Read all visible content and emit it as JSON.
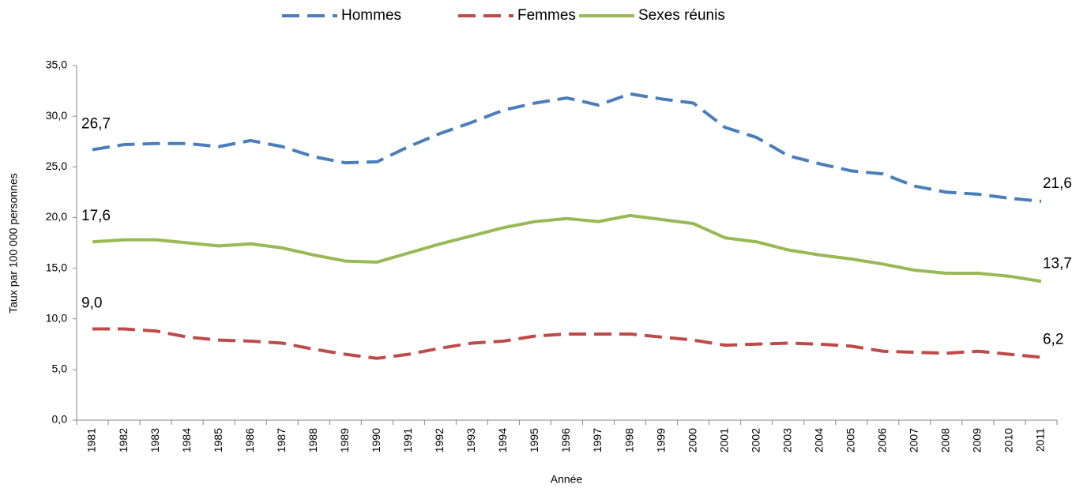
{
  "chart_data": {
    "type": "line",
    "y_label": "Taux par 100 000 personnes",
    "x_label": "Année",
    "categories": [
      "1981",
      "1982",
      "1983",
      "1984",
      "1985",
      "1986",
      "1987",
      "1988",
      "1989",
      "1990",
      "1991",
      "1992",
      "1993",
      "1994",
      "1995",
      "1996",
      "1997",
      "1998",
      "1999",
      "2000",
      "2001",
      "2002",
      "2003",
      "2004",
      "2005",
      "2006",
      "2007",
      "2008",
      "2009",
      "2010",
      "2011"
    ],
    "ylim": [
      0,
      35
    ],
    "yticks": [
      {
        "value": 0,
        "label": "0,0"
      },
      {
        "value": 5,
        "label": "5,0"
      },
      {
        "value": 10,
        "label": "10,0"
      },
      {
        "value": 15,
        "label": "15,0"
      },
      {
        "value": 20,
        "label": "20,0"
      },
      {
        "value": 25,
        "label": "25,0"
      },
      {
        "value": 30,
        "label": "30,0"
      },
      {
        "value": 35,
        "label": "35,0"
      }
    ],
    "grid": false,
    "legend": "top",
    "series": [
      {
        "name": "Hommes",
        "color": "#4a7ebb",
        "dashed": true,
        "values": [
          26.7,
          27.2,
          27.3,
          27.3,
          27.0,
          27.6,
          27.0,
          26.0,
          25.4,
          25.5,
          27.0,
          28.3,
          29.4,
          30.6,
          31.3,
          31.8,
          31.1,
          32.2,
          31.7,
          31.3,
          28.9,
          27.9,
          26.1,
          25.3,
          24.6,
          24.3,
          23.1,
          22.5,
          22.3,
          21.9,
          21.6
        ],
        "value_labels": [
          "26,7",
          null,
          null,
          null,
          null,
          null,
          null,
          null,
          null,
          null,
          null,
          null,
          null,
          null,
          null,
          null,
          null,
          null,
          null,
          null,
          null,
          null,
          null,
          null,
          null,
          null,
          null,
          null,
          null,
          null,
          "21,6"
        ]
      },
      {
        "name": "Femmes",
        "color": "#be4b48",
        "dashed": true,
        "values": [
          9.0,
          9.0,
          8.8,
          8.2,
          7.9,
          7.8,
          7.6,
          7.0,
          6.5,
          6.1,
          6.5,
          7.1,
          7.6,
          7.8,
          8.3,
          8.5,
          8.5,
          8.5,
          8.2,
          7.9,
          7.4,
          7.5,
          7.6,
          7.5,
          7.3,
          6.8,
          6.7,
          6.6,
          6.8,
          6.5,
          6.2
        ],
        "value_labels": [
          "9,0",
          null,
          null,
          null,
          null,
          null,
          null,
          null,
          null,
          null,
          null,
          null,
          null,
          null,
          null,
          null,
          null,
          null,
          null,
          null,
          null,
          null,
          null,
          null,
          null,
          null,
          null,
          null,
          null,
          null,
          "6,2"
        ]
      },
      {
        "name": "Sexes réunis",
        "color": "#98b954",
        "dashed": false,
        "values": [
          17.6,
          17.8,
          17.8,
          17.5,
          17.2,
          17.4,
          17.0,
          16.3,
          15.7,
          15.6,
          16.5,
          17.4,
          18.2,
          19.0,
          19.6,
          19.9,
          19.6,
          20.2,
          19.8,
          19.4,
          18.0,
          17.6,
          16.8,
          16.3,
          15.9,
          15.4,
          14.8,
          14.5,
          14.5,
          14.2,
          13.7
        ],
        "value_labels": [
          "17,6",
          null,
          null,
          null,
          null,
          null,
          null,
          null,
          null,
          null,
          null,
          null,
          null,
          null,
          null,
          null,
          null,
          null,
          null,
          null,
          null,
          null,
          null,
          null,
          null,
          null,
          null,
          null,
          null,
          null,
          "13,7"
        ]
      }
    ]
  }
}
